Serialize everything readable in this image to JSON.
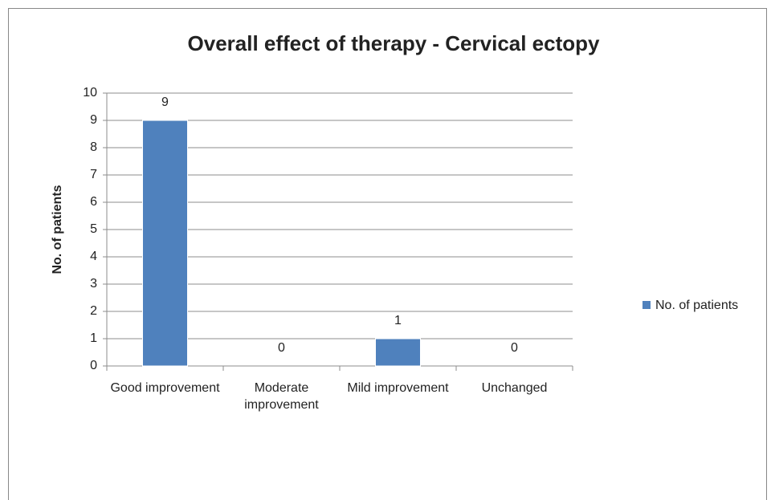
{
  "chart_data": {
    "type": "bar",
    "title": "Overall effect of therapy - Cervical ectopy",
    "y_label": "No. of patients",
    "categories": [
      "Good improvement",
      "Moderate improvement",
      "Mild improvement",
      "Unchanged"
    ],
    "series": [
      {
        "name": "No. of patients",
        "color": "#4f81bd",
        "values": [
          9,
          0,
          1,
          0
        ]
      }
    ],
    "ylim": [
      0,
      10
    ],
    "yticks": [
      0,
      1,
      2,
      3,
      4,
      5,
      6,
      7,
      8,
      9,
      10
    ],
    "grid": true,
    "legend": "right"
  }
}
